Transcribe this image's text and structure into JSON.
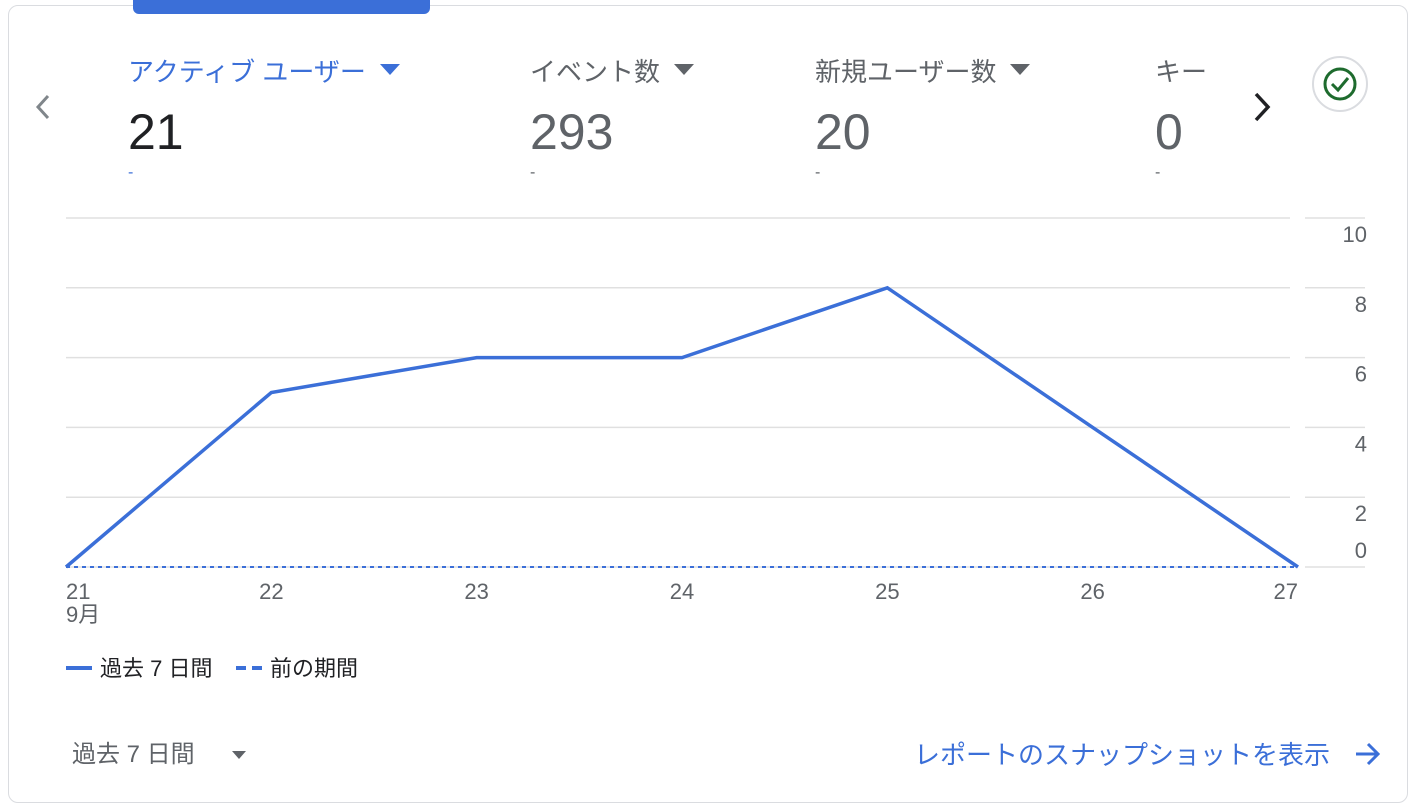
{
  "metrics": [
    {
      "label": "アクティブ ユーザー",
      "value": "21",
      "change": "-"
    },
    {
      "label": "イベント数",
      "value": "293",
      "change": "-"
    },
    {
      "label": "新規ユーザー数",
      "value": "20",
      "change": "-"
    },
    {
      "label": "キー",
      "value": "0",
      "change": "-"
    }
  ],
  "chart_data": {
    "type": "line",
    "categories": [
      "21",
      "22",
      "23",
      "24",
      "25",
      "26",
      "27"
    ],
    "x_sublabel": "9月",
    "series": [
      {
        "name": "過去 7 日間",
        "color": "#3b6fd8",
        "style": "solid",
        "values": [
          0,
          5,
          6,
          6,
          8,
          4,
          0
        ]
      },
      {
        "name": "前の期間",
        "color": "#3b6fd8",
        "style": "dashed",
        "values": [
          0,
          0,
          0,
          0,
          0,
          0,
          0
        ]
      }
    ],
    "ylim": [
      0,
      10
    ],
    "yticks": [
      0,
      2,
      4,
      6,
      8,
      10
    ],
    "grid": true
  },
  "footer": {
    "period": "過去 7 日間",
    "link": "レポートのスナップショットを表示"
  }
}
